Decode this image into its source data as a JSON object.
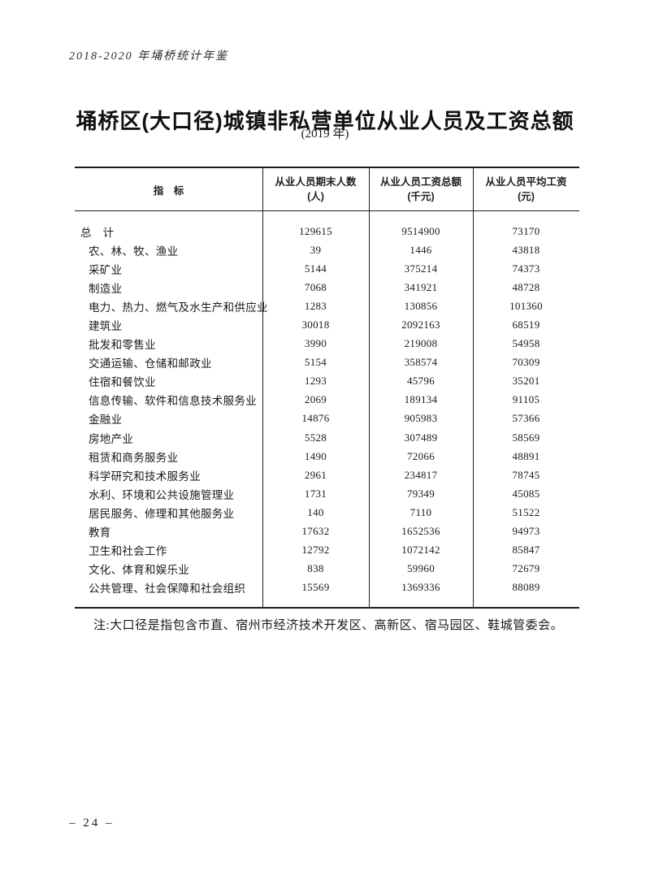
{
  "page": {
    "running_header": "2018-2020 年埇桥统计年鉴",
    "page_number": "– 24 –"
  },
  "title": "埇桥区(大口径)城镇非私营单位从业人员及工资总额",
  "subtitle": "(2019 年)",
  "note": "注:大口径是指包含市直、宿州市经济技术开发区、高新区、宿马园区、鞋城管委会。",
  "table": {
    "header": {
      "indicator": "指　标",
      "columns": [
        {
          "line1": "从业人员期末人数",
          "line2": "(人)"
        },
        {
          "line1": "从业人员工资总额",
          "line2": "(千元)"
        },
        {
          "line1": "从业人员平均工资",
          "line2": "(元)"
        }
      ]
    },
    "rows": [
      {
        "label": "总　计",
        "indent": false,
        "values": [
          "129615",
          "9514900",
          "73170"
        ]
      },
      {
        "label": "农、林、牧、渔业",
        "indent": true,
        "values": [
          "39",
          "1446",
          "43818"
        ]
      },
      {
        "label": "采矿业",
        "indent": true,
        "values": [
          "5144",
          "375214",
          "74373"
        ]
      },
      {
        "label": "制造业",
        "indent": true,
        "values": [
          "7068",
          "341921",
          "48728"
        ]
      },
      {
        "label": "电力、热力、燃气及水生产和供应业",
        "indent": true,
        "values": [
          "1283",
          "130856",
          "101360"
        ]
      },
      {
        "label": "建筑业",
        "indent": true,
        "values": [
          "30018",
          "2092163",
          "68519"
        ]
      },
      {
        "label": "批发和零售业",
        "indent": true,
        "values": [
          "3990",
          "219008",
          "54958"
        ]
      },
      {
        "label": "交通运输、仓储和邮政业",
        "indent": true,
        "values": [
          "5154",
          "358574",
          "70309"
        ]
      },
      {
        "label": "住宿和餐饮业",
        "indent": true,
        "values": [
          "1293",
          "45796",
          "35201"
        ]
      },
      {
        "label": "信息传输、软件和信息技术服务业",
        "indent": true,
        "values": [
          "2069",
          "189134",
          "91105"
        ]
      },
      {
        "label": "金融业",
        "indent": true,
        "values": [
          "14876",
          "905983",
          "57366"
        ]
      },
      {
        "label": "房地产业",
        "indent": true,
        "values": [
          "5528",
          "307489",
          "58569"
        ]
      },
      {
        "label": "租赁和商务服务业",
        "indent": true,
        "values": [
          "1490",
          "72066",
          "48891"
        ]
      },
      {
        "label": "科学研究和技术服务业",
        "indent": true,
        "values": [
          "2961",
          "234817",
          "78745"
        ]
      },
      {
        "label": "水利、环境和公共设施管理业",
        "indent": true,
        "values": [
          "1731",
          "79349",
          "45085"
        ]
      },
      {
        "label": "居民服务、修理和其他服务业",
        "indent": true,
        "values": [
          "140",
          "7110",
          "51522"
        ]
      },
      {
        "label": "教育",
        "indent": true,
        "values": [
          "17632",
          "1652536",
          "94973"
        ]
      },
      {
        "label": "卫生和社会工作",
        "indent": true,
        "values": [
          "12792",
          "1072142",
          "85847"
        ]
      },
      {
        "label": "文化、体育和娱乐业",
        "indent": true,
        "values": [
          "838",
          "59960",
          "72679"
        ]
      },
      {
        "label": "公共管理、社会保障和社会组织",
        "indent": true,
        "values": [
          "15569",
          "1369336",
          "88089"
        ]
      }
    ]
  }
}
